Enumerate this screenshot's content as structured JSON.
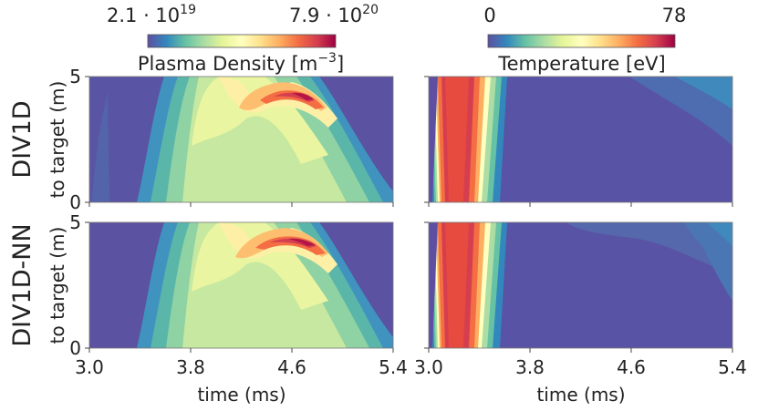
{
  "row_labels": [
    "DIV1D",
    "DIV1D-NN"
  ],
  "ylabel": "to target (m)",
  "xlabel": "time (ms)",
  "colorbars": [
    {
      "label": "Plasma Density [m",
      "label_exp": "−3",
      "label_tail": "]",
      "min_label": "2.1 · 10",
      "min_exp": "19",
      "max_label": "7.9 · 10",
      "max_exp": "20",
      "colormap": "Spectral_r"
    },
    {
      "label": "Temperature [eV]",
      "min_label": "0",
      "max_label": "78",
      "colormap": "Spectral_r"
    }
  ],
  "chart_data": [
    {
      "type": "heatmap",
      "name": "",
      "row": "DIV1D",
      "quantity": "Plasma Density",
      "x": {
        "range": [
          3.0,
          5.4
        ],
        "ticks": [
          "3.0",
          "3.8",
          "4.6",
          "5.4"
        ]
      },
      "y": {
        "range": [
          0,
          5
        ],
        "ticks": [
          "0",
          "5"
        ]
      },
      "zlim": [
        2.1e+19,
        7.9e+20
      ],
      "tick_labels_shown": {
        "x": false,
        "y": true
      }
    },
    {
      "type": "heatmap",
      "name": "",
      "row": "DIV1D",
      "quantity": "Temperature",
      "x": {
        "range": [
          3.0,
          5.4
        ],
        "ticks": [
          "3.0",
          "3.8",
          "4.6",
          "5.4"
        ]
      },
      "y": {
        "range": [
          0,
          5
        ],
        "ticks": [
          "0",
          "5"
        ]
      },
      "zlim": [
        0,
        78
      ],
      "tick_labels_shown": {
        "x": false,
        "y": false
      }
    },
    {
      "type": "heatmap",
      "name": "",
      "row": "DIV1D-NN",
      "quantity": "Plasma Density",
      "x": {
        "range": [
          3.0,
          5.4
        ],
        "ticks": [
          "3.0",
          "3.8",
          "4.6",
          "5.4"
        ]
      },
      "y": {
        "range": [
          0,
          5
        ],
        "ticks": [
          "0",
          "5"
        ]
      },
      "zlim": [
        2.1e+19,
        7.9e+20
      ],
      "tick_labels_shown": {
        "x": true,
        "y": true
      }
    },
    {
      "type": "heatmap",
      "name": "",
      "row": "DIV1D-NN",
      "quantity": "Temperature",
      "x": {
        "range": [
          3.0,
          5.4
        ],
        "ticks": [
          "3.0",
          "3.8",
          "4.6",
          "5.4"
        ]
      },
      "y": {
        "range": [
          0,
          5
        ],
        "ticks": [
          "0",
          "5"
        ]
      },
      "zlim": [
        0,
        78
      ],
      "tick_labels_shown": {
        "x": true,
        "y": false
      }
    }
  ]
}
